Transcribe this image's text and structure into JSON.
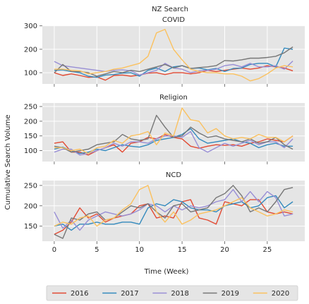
{
  "figure": {
    "suptitle": "NZ Search",
    "xlabel": "Time (Week)",
    "ylabel": "Cumulative Search Volume"
  },
  "legend": {
    "placement": "bottom-center",
    "entries": [
      {
        "name": "2016",
        "color": "#e24a33"
      },
      {
        "name": "2017",
        "color": "#348abd"
      },
      {
        "name": "2018",
        "color": "#988ed5"
      },
      {
        "name": "2019",
        "color": "#777777"
      },
      {
        "name": "2020",
        "color": "#fbc15e"
      }
    ]
  },
  "chart_data": [
    {
      "type": "line",
      "title": "COVID",
      "x": [
        0,
        1,
        2,
        3,
        4,
        5,
        6,
        7,
        8,
        9,
        10,
        11,
        12,
        13,
        14,
        15,
        16,
        17,
        18,
        19,
        20,
        21,
        22,
        23,
        24,
        25,
        26,
        27,
        28
      ],
      "xlim": [
        -1.4,
        29.4
      ],
      "xticks": [
        0,
        5,
        10,
        15,
        20,
        25
      ],
      "ylim": [
        52,
        302
      ],
      "yticks": [
        100,
        200,
        300
      ],
      "grid": true,
      "series": [
        {
          "name": "2016",
          "values": [
            100,
            88,
            95,
            88,
            80,
            82,
            68,
            88,
            90,
            85,
            90,
            98,
            100,
            92,
            100,
            100,
            95,
            100,
            110,
            105,
            110,
            115,
            120,
            115,
            120,
            130,
            125,
            120,
            108
          ]
        },
        {
          "name": "2017",
          "values": [
            110,
            112,
            105,
            100,
            85,
            80,
            90,
            92,
            98,
            100,
            85,
            110,
            120,
            105,
            125,
            130,
            118,
            120,
            112,
            118,
            105,
            118,
            120,
            135,
            140,
            140,
            125,
            205,
            200
          ]
        },
        {
          "name": "2018",
          "values": [
            148,
            130,
            125,
            120,
            115,
            110,
            105,
            110,
            112,
            108,
            90,
            100,
            110,
            140,
            120,
            115,
            100,
            108,
            110,
            115,
            130,
            135,
            125,
            140,
            125,
            125,
            130,
            115,
            150
          ]
        },
        {
          "name": "2019",
          "values": [
            100,
            135,
            105,
            105,
            100,
            85,
            95,
            105,
            100,
            110,
            105,
            115,
            125,
            135,
            120,
            130,
            118,
            122,
            125,
            130,
            152,
            150,
            155,
            162,
            162,
            165,
            170,
            185,
            210
          ]
        },
        {
          "name": "2020",
          "values": [
            115,
            115,
            110,
            108,
            95,
            100,
            105,
            115,
            120,
            130,
            140,
            170,
            270,
            285,
            200,
            155,
            115,
            105,
            100,
            100,
            95,
            95,
            85,
            65,
            75,
            95,
            120,
            130,
            125
          ]
        }
      ]
    },
    {
      "type": "line",
      "title": "Religion",
      "x": [
        0,
        1,
        2,
        3,
        4,
        5,
        6,
        7,
        8,
        9,
        10,
        11,
        12,
        13,
        14,
        15,
        16,
        17,
        18,
        19,
        20,
        21,
        22,
        23,
        24,
        25,
        26,
        27,
        28
      ],
      "xlim": [
        -1.4,
        29.4
      ],
      "xticks": [
        0,
        5,
        10,
        15,
        20,
        25
      ],
      "ylim": [
        63,
        262
      ],
      "yticks": [
        100,
        150,
        200,
        250
      ],
      "grid": true,
      "series": [
        {
          "name": "2016",
          "values": [
            125,
            130,
            95,
            95,
            85,
            100,
            110,
            120,
            95,
            125,
            130,
            145,
            140,
            155,
            145,
            140,
            115,
            108,
            115,
            120,
            118,
            120,
            115,
            125,
            130,
            140,
            135,
            130,
            150
          ]
        },
        {
          "name": "2017",
          "values": [
            105,
            112,
            100,
            90,
            95,
            105,
            100,
            110,
            120,
            115,
            112,
            120,
            135,
            140,
            145,
            155,
            175,
            140,
            125,
            130,
            135,
            140,
            130,
            125,
            110,
            120,
            125,
            115,
            115
          ]
        },
        {
          "name": "2018",
          "values": [
            95,
            105,
            105,
            85,
            90,
            100,
            110,
            125,
            115,
            130,
            130,
            125,
            140,
            150,
            150,
            145,
            165,
            110,
            95,
            110,
            125,
            115,
            125,
            135,
            120,
            130,
            130,
            110,
            140
          ]
        },
        {
          "name": "2019",
          "values": [
            115,
            110,
            95,
            100,
            105,
            120,
            125,
            130,
            155,
            140,
            135,
            140,
            220,
            180,
            145,
            150,
            180,
            160,
            145,
            150,
            140,
            135,
            130,
            140,
            125,
            130,
            145,
            120,
            105
          ]
        },
        {
          "name": "2020",
          "values": [
            110,
            110,
            100,
            105,
            90,
            110,
            115,
            135,
            125,
            150,
            155,
            165,
            120,
            160,
            150,
            245,
            205,
            200,
            160,
            175,
            150,
            140,
            145,
            140,
            155,
            145,
            145,
            130,
            150
          ]
        }
      ]
    },
    {
      "type": "line",
      "title": "NCD",
      "x": [
        0,
        1,
        2,
        3,
        4,
        5,
        6,
        7,
        8,
        9,
        10,
        11,
        12,
        13,
        14,
        15,
        16,
        17,
        18,
        19,
        20,
        21,
        22,
        23,
        24,
        25,
        26,
        27,
        28
      ],
      "xlim": [
        -1.4,
        29.4
      ],
      "xticks": [
        0,
        5,
        10,
        15,
        20,
        25
      ],
      "ylim": [
        113,
        262
      ],
      "yticks": [
        150,
        200,
        250
      ],
      "grid": true,
      "series": [
        {
          "name": "2016",
          "values": [
            130,
            140,
            160,
            195,
            170,
            180,
            160,
            170,
            175,
            180,
            200,
            205,
            170,
            175,
            170,
            210,
            215,
            170,
            165,
            155,
            210,
            205,
            200,
            215,
            215,
            185,
            180,
            185,
            180
          ]
        },
        {
          "name": "2017",
          "values": [
            150,
            155,
            140,
            155,
            155,
            160,
            155,
            155,
            160,
            160,
            155,
            195,
            205,
            200,
            215,
            210,
            195,
            190,
            190,
            185,
            200,
            205,
            210,
            195,
            200,
            220,
            225,
            195,
            210
          ]
        },
        {
          "name": "2018",
          "values": [
            185,
            145,
            165,
            140,
            165,
            175,
            185,
            180,
            175,
            180,
            190,
            205,
            200,
            185,
            200,
            190,
            200,
            195,
            200,
            210,
            215,
            240,
            210,
            235,
            210,
            235,
            220,
            175,
            180
          ]
        },
        {
          "name": "2019",
          "values": [
            130,
            120,
            170,
            165,
            180,
            185,
            165,
            170,
            185,
            200,
            195,
            205,
            185,
            170,
            200,
            205,
            185,
            190,
            195,
            220,
            230,
            250,
            225,
            185,
            195,
            185,
            210,
            240,
            245
          ]
        },
        {
          "name": "2020",
          "values": [
            150,
            160,
            155,
            170,
            175,
            150,
            165,
            170,
            190,
            205,
            240,
            250,
            185,
            160,
            185,
            155,
            165,
            180,
            185,
            190,
            200,
            210,
            220,
            195,
            185,
            175,
            180,
            190,
            185
          ]
        }
      ]
    }
  ]
}
